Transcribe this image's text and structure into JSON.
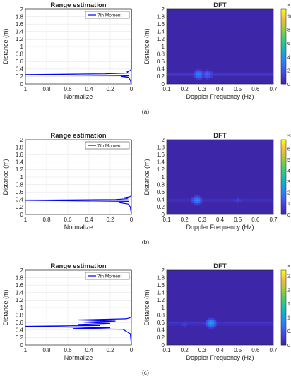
{
  "colors": {
    "line": "#0000ff",
    "heat_low": "#3e26a8",
    "heat_high": "#f9fb0e"
  },
  "chart_data": [
    {
      "panel": "(a)",
      "type": "line",
      "title": "Range estimation",
      "xlabel": "Normalize",
      "ylabel": "Distance (m)",
      "xlim": [
        1,
        0
      ],
      "ylim": [
        0,
        2
      ],
      "x_reversed": true,
      "grid": true,
      "xticks": [
        "1",
        "0.8",
        "0.6",
        "0.4",
        "0.2",
        "0"
      ],
      "yticks": [
        "0",
        "0.2",
        "0.4",
        "0.6",
        "0.8",
        "1",
        "1.2",
        "1.4",
        "1.6",
        "1.8",
        "2"
      ],
      "legend": "top-right",
      "series": [
        {
          "name": "7th Moment",
          "points": [
            [
              0,
              0
            ],
            [
              0.01,
              0.1
            ],
            [
              0.03,
              0.18
            ],
            [
              0.1,
              0.2
            ],
            [
              0.02,
              0.22
            ],
            [
              1,
              0.25
            ],
            [
              0.25,
              0.27
            ],
            [
              0.03,
              0.29
            ],
            [
              0.04,
              0.32
            ],
            [
              0.01,
              0.36
            ],
            [
              0,
              0.4
            ],
            [
              0,
              2
            ]
          ]
        }
      ]
    },
    {
      "panel": "(a)",
      "type": "heatmap",
      "title": "DFT",
      "xlabel": "Doppler Frequency (Hz)",
      "ylabel": "Distance (m)",
      "xlim": [
        0.1,
        0.7
      ],
      "ylim": [
        0,
        2
      ],
      "xticks": [
        "0.1",
        "0.2",
        "0.3",
        "0.4",
        "0.5",
        "0.6",
        "0.7"
      ],
      "yticks": [
        "0",
        "0.2",
        "0.4",
        "0.6",
        "0.8",
        "1",
        "1.2",
        "1.4",
        "1.6",
        "1.8",
        "2"
      ],
      "colorbar": {
        "max": 11,
        "ticks": [
          "0",
          "2",
          "4",
          "6",
          "8",
          "10"
        ],
        "exponent": "×10⁹"
      },
      "hotspots": [
        {
          "x": 0.28,
          "y": 0.25,
          "intensity": 0.35
        },
        {
          "x": 0.33,
          "y": 0.25,
          "intensity": 0.25
        }
      ]
    },
    {
      "panel": "(b)",
      "type": "line",
      "title": "Range estimation",
      "xlabel": "Normalize",
      "ylabel": "Distance (m)",
      "xlim": [
        1,
        0
      ],
      "ylim": [
        0,
        2
      ],
      "x_reversed": true,
      "grid": true,
      "xticks": [
        "1",
        "0.8",
        "0.6",
        "0.4",
        "0.2",
        "0"
      ],
      "yticks": [
        "0",
        "0.2",
        "0.4",
        "0.6",
        "0.8",
        "1",
        "1.2",
        "1.4",
        "1.6",
        "1.8",
        "2"
      ],
      "legend": "top-right",
      "series": [
        {
          "name": "7th Moment",
          "points": [
            [
              0,
              0
            ],
            [
              0.01,
              0.2
            ],
            [
              0.03,
              0.28
            ],
            [
              0.12,
              0.32
            ],
            [
              0.02,
              0.35
            ],
            [
              1,
              0.38
            ],
            [
              0.15,
              0.4
            ],
            [
              0.04,
              0.42
            ],
            [
              0.06,
              0.45
            ],
            [
              0.02,
              0.47
            ],
            [
              0,
              0.5
            ],
            [
              0,
              2
            ]
          ]
        }
      ]
    },
    {
      "panel": "(b)",
      "type": "heatmap",
      "title": "DFT",
      "xlabel": "Doppler Frequency (Hz)",
      "ylabel": "Distance (m)",
      "xlim": [
        0.1,
        0.7
      ],
      "ylim": [
        0,
        2
      ],
      "xticks": [
        "0.1",
        "0.2",
        "0.3",
        "0.4",
        "0.5",
        "0.6",
        "0.7"
      ],
      "yticks": [
        "0",
        "0.2",
        "0.4",
        "0.6",
        "0.8",
        "1",
        "1.2",
        "1.4",
        "1.6",
        "1.8",
        "2"
      ],
      "colorbar": {
        "max": 6.8,
        "ticks": [
          "0",
          "1",
          "2",
          "3",
          "4",
          "5",
          "6"
        ],
        "exponent": "×10⁹"
      },
      "hotspots": [
        {
          "x": 0.27,
          "y": 0.38,
          "intensity": 0.35
        },
        {
          "x": 0.5,
          "y": 0.38,
          "intensity": 0.1
        }
      ]
    },
    {
      "panel": "(c)",
      "type": "line",
      "title": "Range estimation",
      "xlabel": "Normalize",
      "ylabel": "Distance (m)",
      "xlim": [
        1,
        0
      ],
      "ylim": [
        0,
        2
      ],
      "x_reversed": true,
      "grid": true,
      "xticks": [
        "1",
        "0.8",
        "0.6",
        "0.4",
        "0.2",
        "0"
      ],
      "yticks": [
        "0",
        "0.2",
        "0.4",
        "0.6",
        "0.8",
        "1",
        "1.2",
        "1.4",
        "1.6",
        "1.8",
        "2"
      ],
      "legend": "top-right",
      "series": [
        {
          "name": "7th Moment",
          "points": [
            [
              0,
              0
            ],
            [
              0.01,
              0.3
            ],
            [
              0.08,
              0.42
            ],
            [
              0.55,
              0.44
            ],
            [
              0.2,
              0.46
            ],
            [
              1,
              0.5
            ],
            [
              0.3,
              0.52
            ],
            [
              0.5,
              0.55
            ],
            [
              0.2,
              0.58
            ],
            [
              0.45,
              0.61
            ],
            [
              0.15,
              0.64
            ],
            [
              0.5,
              0.67
            ],
            [
              0.05,
              0.7
            ],
            [
              0.02,
              0.72
            ],
            [
              0,
              0.75
            ],
            [
              0,
              2
            ]
          ]
        }
      ]
    },
    {
      "panel": "(c)",
      "type": "heatmap",
      "title": "DFT",
      "xlabel": "Doppler Frequency (Hz)",
      "ylabel": "Distance (m)",
      "xlim": [
        0.1,
        0.7
      ],
      "ylim": [
        0,
        2
      ],
      "xticks": [
        "0.1",
        "0.2",
        "0.3",
        "0.4",
        "0.5",
        "0.6",
        "0.7"
      ],
      "yticks": [
        "0",
        "0.2",
        "0.4",
        "0.6",
        "0.8",
        "1",
        "1.2",
        "1.4",
        "1.6",
        "1.8",
        "2"
      ],
      "colorbar": {
        "max": 2.7,
        "ticks": [
          "0",
          "0.5",
          "1",
          "1.5",
          "2",
          "2.5"
        ],
        "exponent": "×10⁹"
      },
      "hotspots": [
        {
          "x": 0.35,
          "y": 0.58,
          "intensity": 0.4
        },
        {
          "x": 0.2,
          "y": 0.55,
          "intensity": 0.1
        }
      ]
    }
  ],
  "panel_labels": [
    "(a)",
    "(b)",
    "(c)"
  ]
}
